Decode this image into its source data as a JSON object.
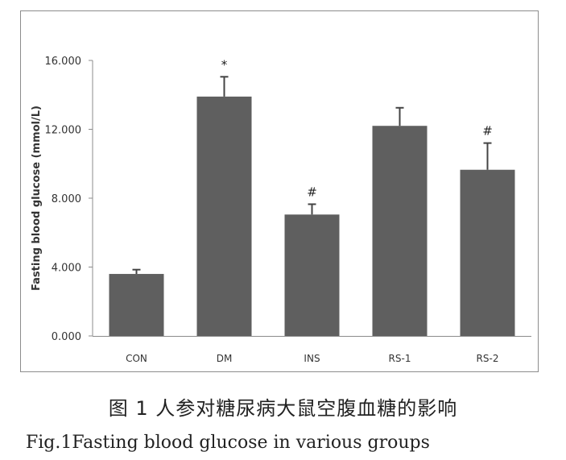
{
  "chart_data": {
    "type": "bar",
    "categories": [
      "CON",
      "DM",
      "INS",
      "RS-1",
      "RS-2"
    ],
    "values": [
      3.6,
      13.9,
      7.05,
      12.2,
      9.65
    ],
    "errors": [
      0.25,
      1.15,
      0.6,
      1.05,
      1.55
    ],
    "annotations": [
      "",
      "*",
      "#",
      "",
      "#"
    ],
    "ylabel": "Fasting blood glucose (mmol/L)",
    "ylim": [
      0,
      16
    ],
    "yticks": [
      0,
      4,
      8,
      12,
      16
    ],
    "ytick_labels": [
      "0.000",
      "4.000",
      "8.000",
      "12.000",
      "16.000"
    ],
    "grid": false,
    "bar_color": "#5f5f5f"
  },
  "caption": {
    "chinese": "图 1 人参对糖尿病大鼠空腹血糖的影响",
    "english": "Fig.1Fasting blood glucose in various groups"
  }
}
